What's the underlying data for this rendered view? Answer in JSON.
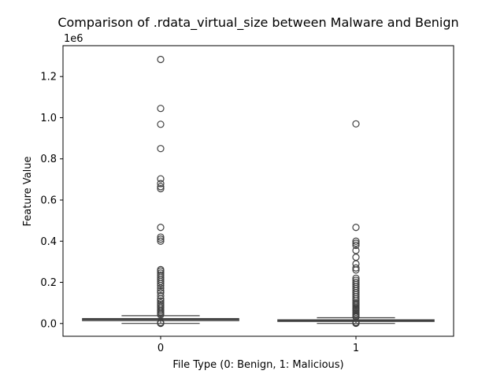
{
  "chart_data": {
    "type": "box",
    "title": "Comparison of .rdata_virtual_size between Malware and Benign",
    "xlabel": "File Type (0: Benign, 1: Malicious)",
    "ylabel": "Feature Value",
    "y_offset_label": "1e6",
    "ylim": [
      -62000,
      1350000
    ],
    "y_scale_factor": 1000000,
    "yticks": [
      0,
      200000,
      400000,
      600000,
      800000,
      1000000,
      1200000
    ],
    "ytick_labels": [
      "0.0",
      "0.2",
      "0.4",
      "0.6",
      "0.8",
      "1.0",
      "1.2"
    ],
    "categories": [
      "0",
      "1"
    ],
    "box_color": "#ffffff",
    "edge_color": "#3f3f3f",
    "series": [
      {
        "category": "0",
        "q1": 14000,
        "median": 20000,
        "q3": 24000,
        "whisker_low": 500,
        "whisker_high": 38000,
        "outliers": [
          1283000,
          1045000,
          968000,
          850000,
          703000,
          680000,
          665000,
          655000,
          467000,
          420000,
          410000,
          400000,
          262000,
          255000,
          245000,
          235000,
          225000,
          215000,
          205000,
          195000,
          185000,
          172000,
          160000,
          150000,
          135000,
          120000,
          110000,
          100000,
          92000,
          85000,
          78000,
          70000,
          62000,
          55000,
          48000,
          42000,
          5000,
          2000,
          500
        ]
      },
      {
        "category": "1",
        "q1": 10000,
        "median": 14000,
        "q3": 18000,
        "whisker_low": 500,
        "whisker_high": 28000,
        "outliers": [
          970000,
          467000,
          400000,
          390000,
          380000,
          355000,
          322000,
          290000,
          270000,
          260000,
          220000,
          210000,
          200000,
          190000,
          180000,
          170000,
          160000,
          150000,
          140000,
          130000,
          120000,
          110000,
          100000,
          95000,
          88000,
          80000,
          75000,
          68000,
          62000,
          55000,
          48000,
          42000,
          36000,
          32000,
          6000,
          3000,
          1000
        ]
      }
    ],
    "grid": false,
    "legend": "none"
  }
}
